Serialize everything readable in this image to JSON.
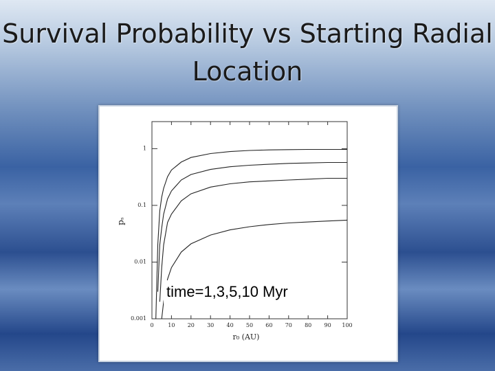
{
  "chart_data": {
    "type": "line",
    "title": "Survival Probability vs Starting Radial Location",
    "xlabel": "r₀ (AU)",
    "ylabel": "pₛ",
    "annotation": "time=1,3,5,10 Myr",
    "yscale": "log",
    "x": [
      2,
      3,
      4,
      5,
      6,
      8,
      10,
      15,
      20,
      30,
      40,
      50,
      60,
      70,
      80,
      90,
      100
    ],
    "series": [
      {
        "color": "#222222",
        "values": [
          0.001,
          0.02,
          0.08,
          0.14,
          0.2,
          0.32,
          0.42,
          0.58,
          0.7,
          0.82,
          0.89,
          0.93,
          0.95,
          0.96,
          0.97,
          0.97,
          0.97
        ]
      },
      {
        "color": "#222222",
        "values": [
          null,
          0.003,
          0.02,
          0.04,
          0.07,
          0.13,
          0.18,
          0.28,
          0.35,
          0.43,
          0.48,
          0.51,
          0.53,
          0.55,
          0.56,
          0.57,
          0.57
        ]
      },
      {
        "color": "#222222",
        "values": [
          null,
          null,
          0.002,
          0.008,
          0.02,
          0.05,
          0.07,
          0.12,
          0.16,
          0.21,
          0.24,
          0.26,
          0.27,
          0.28,
          0.29,
          0.3,
          0.3
        ]
      },
      {
        "color": "#222222",
        "values": [
          null,
          null,
          null,
          0.001,
          0.002,
          0.005,
          0.008,
          0.015,
          0.021,
          0.03,
          0.037,
          0.042,
          0.046,
          0.049,
          0.051,
          0.053,
          0.055
        ]
      }
    ],
    "xlim": [
      0,
      100
    ],
    "xticks": [
      0,
      10,
      20,
      30,
      40,
      50,
      60,
      70,
      80,
      90,
      100
    ],
    "ylim": [
      0.001,
      3
    ],
    "yticks": [
      0.001,
      0.01,
      0.1,
      1
    ]
  }
}
